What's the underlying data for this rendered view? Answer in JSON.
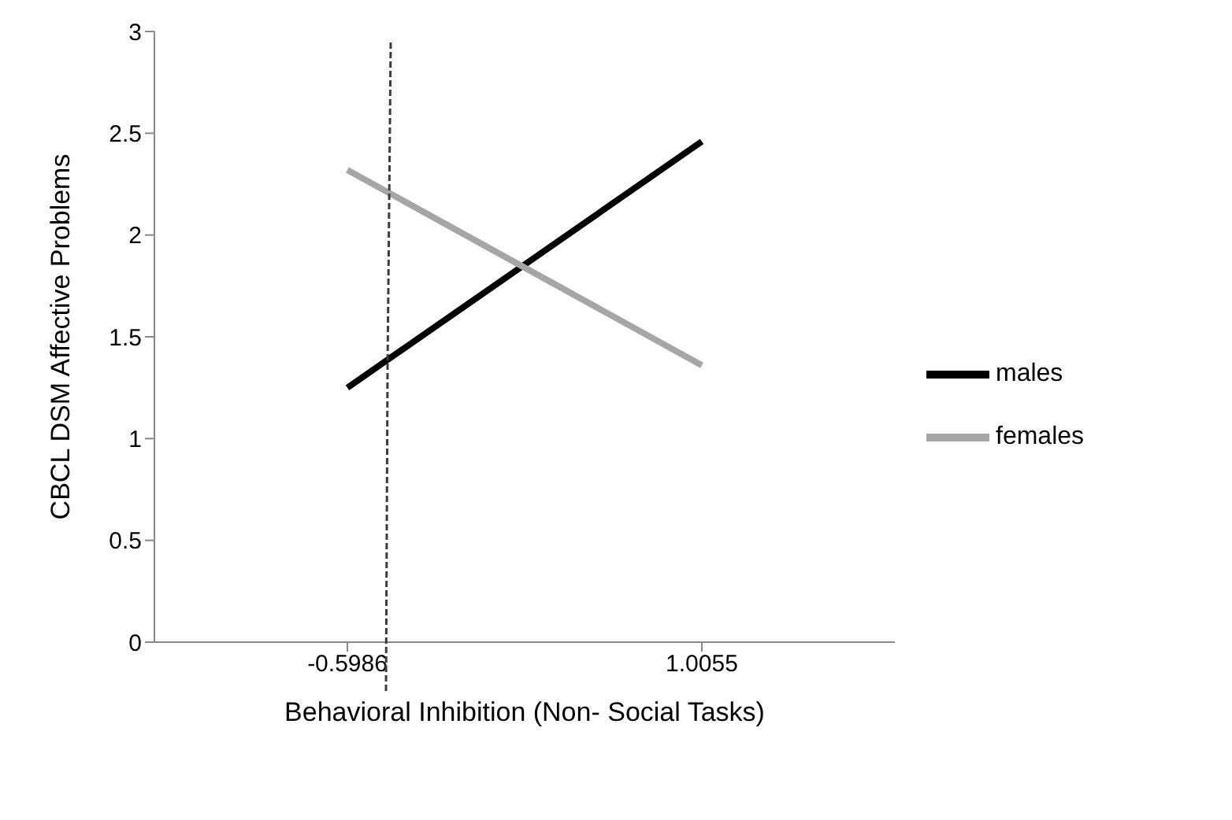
{
  "chart_data": {
    "type": "line",
    "xlabel": "Behavioral Inhibition (Non- Social Tasks)",
    "ylabel": "CBCL DSM Affective Problems",
    "categories": [
      "-0.5986",
      "1.0055"
    ],
    "series": [
      {
        "name": "males",
        "color": "#000000",
        "values": [
          1.25,
          2.46
        ]
      },
      {
        "name": "females",
        "color": "#a6a6a6",
        "values": [
          2.32,
          1.36
        ]
      }
    ],
    "ylim": [
      0,
      3
    ],
    "yticks": [
      0,
      0.5,
      1,
      1.5,
      2,
      2.5,
      3
    ],
    "grid": false,
    "legend": "right",
    "marker": "none",
    "line_style": "solid"
  }
}
